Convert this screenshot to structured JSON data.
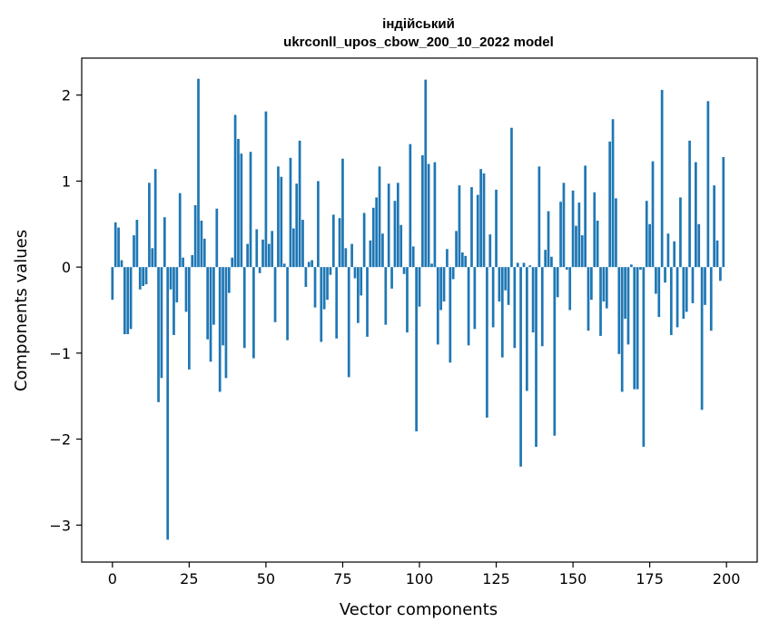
{
  "chart_data": {
    "type": "bar",
    "title_lines": [
      "індійський",
      "ukrconll_upos_cbow_200_10_2022 model"
    ],
    "xlabel": "Vector components",
    "ylabel": "Components values",
    "xlim": [
      -10,
      210
    ],
    "ylim": [
      -3.43,
      2.43
    ],
    "xticks": [
      0,
      25,
      50,
      75,
      100,
      125,
      150,
      175,
      200
    ],
    "yticks": [
      -3,
      -2,
      -1,
      0,
      1,
      2
    ],
    "color": "#1f77b4",
    "grid": false,
    "x": [
      0,
      1,
      2,
      3,
      4,
      5,
      6,
      7,
      8,
      9,
      10,
      11,
      12,
      13,
      14,
      15,
      16,
      17,
      18,
      19,
      20,
      21,
      22,
      23,
      24,
      25,
      26,
      27,
      28,
      29,
      30,
      31,
      32,
      33,
      34,
      35,
      36,
      37,
      38,
      39,
      40,
      41,
      42,
      43,
      44,
      45,
      46,
      47,
      48,
      49,
      50,
      51,
      52,
      53,
      54,
      55,
      56,
      57,
      58,
      59,
      60,
      61,
      62,
      63,
      64,
      65,
      66,
      67,
      68,
      69,
      70,
      71,
      72,
      73,
      74,
      75,
      76,
      77,
      78,
      79,
      80,
      81,
      82,
      83,
      84,
      85,
      86,
      87,
      88,
      89,
      90,
      91,
      92,
      93,
      94,
      95,
      96,
      97,
      98,
      99,
      100,
      101,
      102,
      103,
      104,
      105,
      106,
      107,
      108,
      109,
      110,
      111,
      112,
      113,
      114,
      115,
      116,
      117,
      118,
      119,
      120,
      121,
      122,
      123,
      124,
      125,
      126,
      127,
      128,
      129,
      130,
      131,
      132,
      133,
      134,
      135,
      136,
      137,
      138,
      139,
      140,
      141,
      142,
      143,
      144,
      145,
      146,
      147,
      148,
      149,
      150,
      151,
      152,
      153,
      154,
      155,
      156,
      157,
      158,
      159,
      160,
      161,
      162,
      163,
      164,
      165,
      166,
      167,
      168,
      169,
      170,
      171,
      172,
      173,
      174,
      175,
      176,
      177,
      178,
      179,
      180,
      181,
      182,
      183,
      184,
      185,
      186,
      187,
      188,
      189,
      190,
      191,
      192,
      193,
      194,
      195,
      196,
      197,
      198,
      199
    ],
    "values": [
      -0.38,
      0.52,
      0.46,
      0.08,
      -0.78,
      -0.78,
      -0.72,
      0.37,
      0.55,
      -0.26,
      -0.22,
      -0.2,
      0.98,
      0.22,
      1.14,
      -1.57,
      -1.29,
      0.58,
      -3.17,
      -0.26,
      -0.79,
      -0.41,
      0.86,
      0.11,
      -0.52,
      -1.19,
      0.14,
      0.72,
      2.19,
      0.54,
      0.33,
      -0.84,
      -1.1,
      -0.67,
      0.68,
      -1.45,
      -0.91,
      -1.29,
      -0.3,
      0.11,
      1.77,
      1.49,
      1.32,
      -0.94,
      0.27,
      1.34,
      -1.06,
      0.44,
      -0.07,
      0.32,
      1.81,
      0.27,
      0.42,
      -0.64,
      1.17,
      1.05,
      0.04,
      -0.85,
      1.27,
      0.45,
      0.97,
      1.47,
      0.55,
      -0.23,
      0.06,
      0.08,
      -0.47,
      1.0,
      -0.87,
      -0.49,
      -0.38,
      -0.09,
      0.61,
      -0.83,
      0.57,
      1.26,
      0.22,
      -1.28,
      0.27,
      -0.13,
      -0.65,
      -0.33,
      0.63,
      -0.81,
      0.31,
      0.69,
      0.81,
      1.17,
      0.39,
      -0.67,
      0.97,
      -0.25,
      0.77,
      0.98,
      0.49,
      -0.08,
      -0.76,
      1.43,
      0.24,
      -1.91,
      -0.46,
      1.3,
      2.18,
      1.2,
      0.04,
      1.22,
      -0.9,
      -0.5,
      -0.4,
      0.21,
      -1.11,
      -0.14,
      0.42,
      0.95,
      0.17,
      0.13,
      -0.91,
      0.93,
      -0.72,
      0.84,
      1.14,
      1.09,
      -1.75,
      0.38,
      -0.7,
      0.9,
      -0.4,
      -1.05,
      -0.27,
      -0.44,
      1.62,
      -0.94,
      0.05,
      -2.32,
      0.05,
      -1.44,
      0.02,
      -0.76,
      -2.09,
      1.17,
      -0.92,
      0.2,
      0.65,
      0.12,
      -1.96,
      -0.35,
      0.76,
      0.98,
      -0.03,
      -0.5,
      0.89,
      0.48,
      0.75,
      0.37,
      1.18,
      -0.74,
      -0.38,
      0.87,
      0.54,
      -0.8,
      -0.4,
      -0.48,
      1.46,
      1.72,
      0.8,
      -1.01,
      -1.45,
      -0.6,
      -0.9,
      0.03,
      -1.42,
      -1.42,
      -0.03,
      -2.09,
      0.77,
      0.5,
      1.23,
      -0.31,
      -0.58,
      2.06,
      -0.18,
      0.39,
      -0.79,
      0.3,
      -0.7,
      0.81,
      -0.6,
      -0.52,
      1.47,
      -0.42,
      1.22,
      0.5,
      -1.66,
      -0.44,
      1.93,
      -0.74,
      0.95,
      0.31,
      -0.16,
      1.28
    ]
  }
}
